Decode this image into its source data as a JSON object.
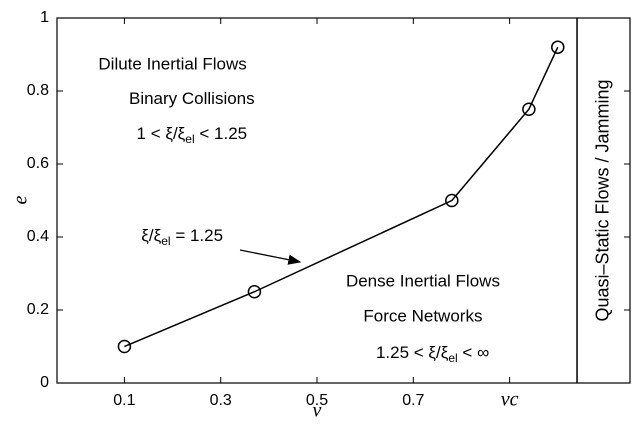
{
  "chart_data": {
    "type": "line",
    "xlabel": "ν",
    "ylabel": "e",
    "x": [
      0.1,
      0.37,
      0.78,
      0.94,
      1.0
    ],
    "series": [
      {
        "color": "#000000",
        "values": [
          0.1,
          0.25,
          0.5,
          0.75,
          0.92
        ]
      }
    ],
    "xlim": [
      -0.04,
      1.15
    ],
    "ylim": [
      0,
      1
    ],
    "xticks": [
      0.1,
      0.3,
      0.5,
      0.7,
      {
        "value": 0.9,
        "label": "νc"
      }
    ],
    "yticks": [
      0,
      0.2,
      0.4,
      0.6,
      0.8,
      1
    ],
    "vline": 1.04,
    "annotations": [
      {
        "text": "Dilute Inertial Flows",
        "x": 0.2,
        "y": 0.87
      },
      {
        "text": "Binary Collisions",
        "x": 0.24,
        "y": 0.775
      },
      {
        "text": "1 < ξ/ξ",
        "sub": "el",
        "rest": " < 1.25",
        "x": 0.24,
        "y": 0.68
      },
      {
        "text": "ξ/ξ",
        "sub": "el",
        "rest": " = 1.25",
        "x": 0.22,
        "y": 0.4
      },
      {
        "text": "Dense Inertial Flows",
        "x": 0.72,
        "y": 0.275
      },
      {
        "text": "Force Networks",
        "x": 0.72,
        "y": 0.18
      },
      {
        "text": "1.25 < ξ/ξ",
        "sub": "el",
        "rest": " < ∞",
        "x": 0.74,
        "y": 0.08
      }
    ],
    "region_label": "Quasi–Static Flows / Jamming"
  }
}
